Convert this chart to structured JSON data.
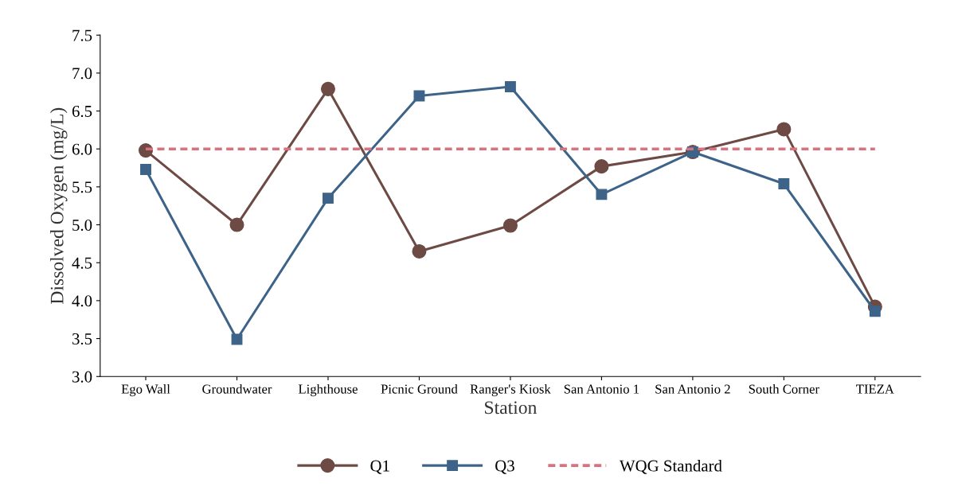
{
  "chart_data": {
    "type": "line",
    "xlabel": "Station",
    "ylabel": "Dissolved Oxygen (mg/L)",
    "categories": [
      "Ego Wall",
      "Groundwater",
      "Lighthouse",
      "Picnic Ground",
      "Ranger's Kiosk",
      "San Antonio 1",
      "San Antonio 2",
      "South Corner",
      "TIEZA"
    ],
    "series": [
      {
        "name": "Q1",
        "color": "#6e4a45",
        "marker": "circle",
        "line_style": "solid",
        "values": [
          5.98,
          5.0,
          6.79,
          4.65,
          4.99,
          5.77,
          5.96,
          6.26,
          3.92
        ]
      },
      {
        "name": "Q3",
        "color": "#3d6488",
        "marker": "square",
        "line_style": "solid",
        "values": [
          5.73,
          3.49,
          5.35,
          6.7,
          6.82,
          5.4,
          5.96,
          5.54,
          3.86
        ]
      },
      {
        "name": "WQG Standard",
        "color": "#d9727e",
        "marker": "none",
        "line_style": "dashed",
        "values": [
          6.0,
          6.0,
          6.0,
          6.0,
          6.0,
          6.0,
          6.0,
          6.0,
          6.0
        ]
      }
    ],
    "ylim": [
      3.0,
      7.5
    ],
    "yticks": [
      {
        "value": 3.0,
        "label": "3.0"
      },
      {
        "value": 3.5,
        "label": "3.5"
      },
      {
        "value": 4.0,
        "label": "4.0"
      },
      {
        "value": 4.5,
        "label": "4.5"
      },
      {
        "value": 5.0,
        "label": "5.0"
      },
      {
        "value": 5.5,
        "label": "5.5"
      },
      {
        "value": 6.0,
        "label": "6.0"
      },
      {
        "value": 6.5,
        "label": "6.5"
      },
      {
        "value": 7.0,
        "label": "7.0"
      },
      {
        "value": 7.5,
        "label": "7.5"
      }
    ],
    "grid": false,
    "legend": "bottom"
  }
}
